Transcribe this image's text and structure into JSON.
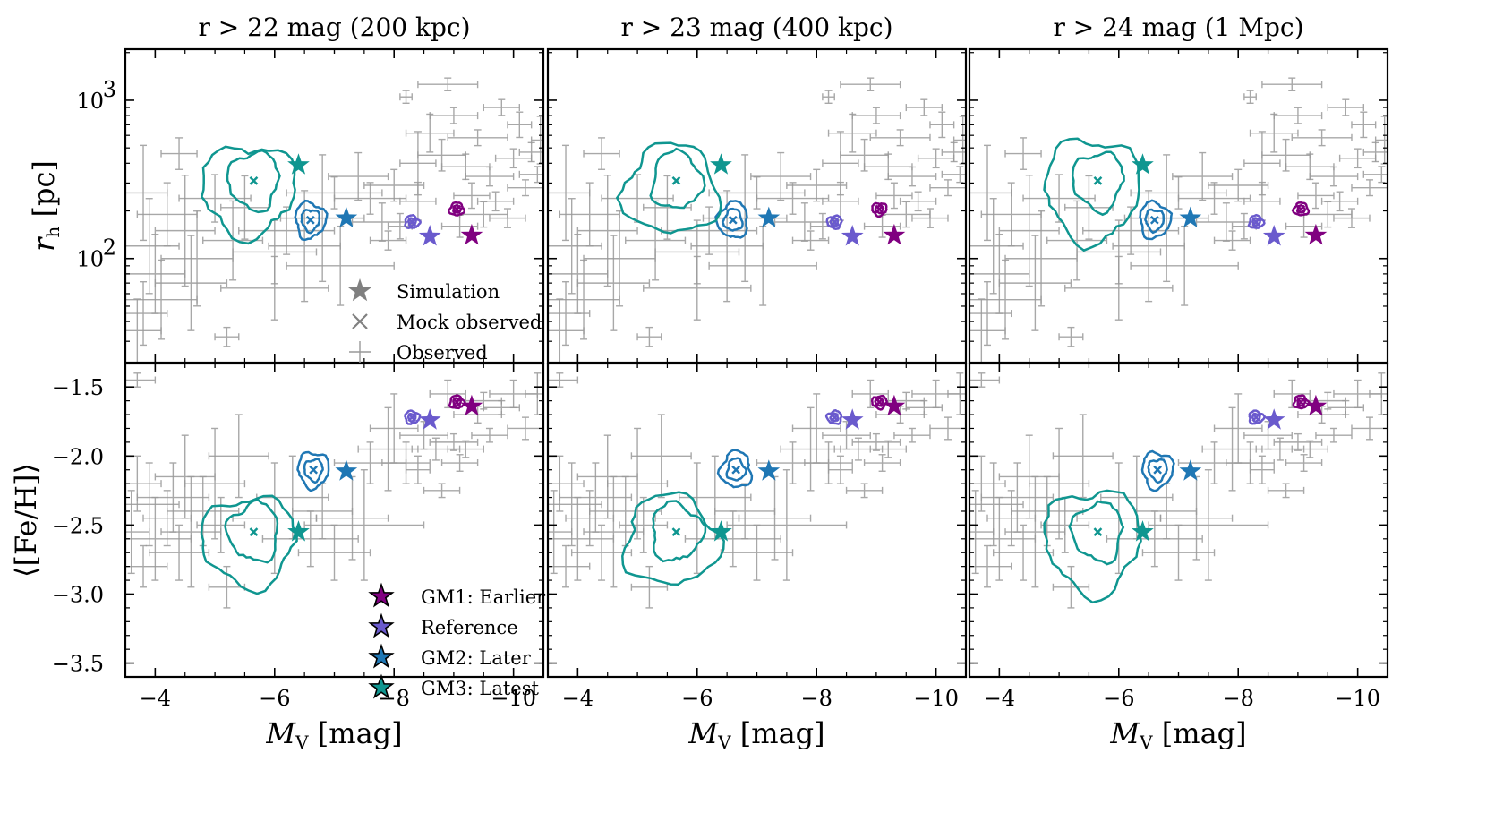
{
  "colors": {
    "GM1": "#800080",
    "Reference": "#6a5acd",
    "GM2": "#1f77b4",
    "GM3": "#0f9690",
    "observed": "#999999"
  },
  "chart_data": {
    "type": "scatter",
    "layout": "2 rows x 3 columns",
    "columns": [
      {
        "title": "r > 22 mag (200 kpc)"
      },
      {
        "title": "r > 23 mag (400 kpc)"
      },
      {
        "title": "r > 24 mag (1 Mpc)"
      }
    ],
    "x": {
      "label_main": "M",
      "label_sub": "V",
      "label_unit": " [mag]",
      "lim": [
        -3.5,
        -10.5
      ],
      "ticks": [
        -4,
        -6,
        -8,
        -10
      ],
      "tick_labels": [
        "−4",
        "−6",
        "−8",
        "−10"
      ]
    },
    "rows": [
      {
        "quantity": "r_h",
        "ylabel_main": "r",
        "ylabel_sub": "h",
        "ylabel_unit": " [pc]",
        "scale": "log",
        "ylim": [
          22,
          2100
        ],
        "ticks": [
          100,
          1000
        ],
        "tick_labels": [
          "10",
          "10"
        ],
        "tick_exponents": [
          "2",
          "3"
        ],
        "simulation": [
          {
            "model": "GM1",
            "MV": -9.3,
            "value": 140
          },
          {
            "model": "Reference",
            "MV": -8.6,
            "value": 138
          },
          {
            "model": "GM2",
            "MV": -7.2,
            "value": 180
          },
          {
            "model": "GM3",
            "MV": -6.4,
            "value": 390
          }
        ],
        "mock_observed": [
          {
            "model": "GM1",
            "MV": -9.05,
            "value": 205
          },
          {
            "model": "Reference",
            "MV": -8.3,
            "value": 170
          },
          {
            "model": "GM2",
            "MV": -6.6,
            "value": 175
          },
          {
            "model": "GM3",
            "MV": -5.65,
            "value": 310
          }
        ],
        "observed": [
          {
            "MV": -4.4,
            "value": 460,
            "xerr": 0.3,
            "yerr": 0.1
          },
          {
            "MV": -4.0,
            "value": 80,
            "xerr": 0.5,
            "yerr": 0.25
          },
          {
            "MV": -3.7,
            "value": 35,
            "xerr": 0.4,
            "yerr": 0.2
          },
          {
            "MV": -3.9,
            "value": 120,
            "xerr": 0.5,
            "yerr": 0.3
          },
          {
            "MV": -4.1,
            "value": 55,
            "xerr": 0.6,
            "yerr": 0.25
          },
          {
            "MV": -4.2,
            "value": 190,
            "xerr": 0.5,
            "yerr": 0.2
          },
          {
            "MV": -4.5,
            "value": 150,
            "xerr": 0.5,
            "yerr": 0.35
          },
          {
            "MV": -4.6,
            "value": 70,
            "xerr": 0.6,
            "yerr": 0.3
          },
          {
            "MV": -4.7,
            "value": 100,
            "xerr": 0.6,
            "yerr": 0.3
          },
          {
            "MV": -3.8,
            "value": 45,
            "xerr": 0.4,
            "yerr": 0.2
          },
          {
            "MV": -5.2,
            "value": 32,
            "xerr": 0.2,
            "yerr": 0.06
          },
          {
            "MV": -5.0,
            "value": 240,
            "xerr": 0.6,
            "yerr": 0.15
          },
          {
            "MV": -5.3,
            "value": 130,
            "xerr": 0.5,
            "yerr": 0.25
          },
          {
            "MV": -5.5,
            "value": 210,
            "xerr": 0.4,
            "yerr": 0.2
          },
          {
            "MV": -3.8,
            "value": 260,
            "xerr": 0.4,
            "yerr": 0.3
          },
          {
            "MV": -6.0,
            "value": 110,
            "xerr": 0.7,
            "yerr": 0.2
          },
          {
            "MV": -6.2,
            "value": 150,
            "xerr": 0.8,
            "yerr": 0.15
          },
          {
            "MV": -6.5,
            "value": 120,
            "xerr": 0.6,
            "yerr": 0.35
          },
          {
            "MV": -6.8,
            "value": 180,
            "xerr": 0.7,
            "yerr": 0.4
          },
          {
            "MV": -7.0,
            "value": 260,
            "xerr": 0.8,
            "yerr": 0.1
          },
          {
            "MV": -6.0,
            "value": 65,
            "xerr": 0.9,
            "yerr": 0.2
          },
          {
            "MV": -7.1,
            "value": 90,
            "xerr": 0.9,
            "yerr": 0.25
          },
          {
            "MV": -7.4,
            "value": 330,
            "xerr": 0.5,
            "yerr": 0.15
          },
          {
            "MV": -7.6,
            "value": 240,
            "xerr": 0.6,
            "yerr": 0.1
          },
          {
            "MV": -7.8,
            "value": 170,
            "xerr": 0.5,
            "yerr": 0.12
          },
          {
            "MV": -8.0,
            "value": 290,
            "xerr": 0.5,
            "yerr": 0.1
          },
          {
            "MV": -8.2,
            "value": 1050,
            "xerr": 0.1,
            "yerr": 0.04
          },
          {
            "MV": -8.4,
            "value": 400,
            "xerr": 0.3,
            "yerr": 0.2
          },
          {
            "MV": -8.4,
            "value": 230,
            "xerr": 0.3,
            "yerr": 0.12
          },
          {
            "MV": -8.6,
            "value": 620,
            "xerr": 0.4,
            "yerr": 0.12
          },
          {
            "MV": -8.8,
            "value": 450,
            "xerr": 0.4,
            "yerr": 0.1
          },
          {
            "MV": -8.9,
            "value": 1260,
            "xerr": 0.5,
            "yerr": 0.04
          },
          {
            "MV": -9.0,
            "value": 800,
            "xerr": 0.4,
            "yerr": 0.05
          },
          {
            "MV": -9.2,
            "value": 380,
            "xerr": 0.4,
            "yerr": 0.08
          },
          {
            "MV": -9.3,
            "value": 250,
            "xerr": 0.3,
            "yerr": 0.08
          },
          {
            "MV": -9.4,
            "value": 580,
            "xerr": 0.5,
            "yerr": 0.05
          },
          {
            "MV": -9.6,
            "value": 330,
            "xerr": 0.4,
            "yerr": 0.06
          },
          {
            "MV": -9.7,
            "value": 230,
            "xerr": 0.3,
            "yerr": 0.06
          },
          {
            "MV": -9.8,
            "value": 900,
            "xerr": 0.3,
            "yerr": 0.05
          },
          {
            "MV": -9.9,
            "value": 180,
            "xerr": 0.3,
            "yerr": 0.06
          },
          {
            "MV": -10.0,
            "value": 430,
            "xerr": 0.3,
            "yerr": 0.06
          },
          {
            "MV": -10.2,
            "value": 280,
            "xerr": 0.3,
            "yerr": 0.05
          },
          {
            "MV": -10.3,
            "value": 470,
            "xerr": 0.2,
            "yerr": 0.06
          },
          {
            "MV": -10.4,
            "value": 340,
            "xerr": 0.3,
            "yerr": 0.05
          },
          {
            "MV": -8.1,
            "value": 160,
            "xerr": 0.2,
            "yerr": 0.08
          },
          {
            "MV": -7.9,
            "value": 130,
            "xerr": 0.3,
            "yerr": 0.06
          },
          {
            "MV": -10.1,
            "value": 700,
            "xerr": 0.2,
            "yerr": 0.08
          },
          {
            "MV": -9.5,
            "value": 190,
            "xerr": 0.4,
            "yerr": 0.08
          },
          {
            "MV": -10.45,
            "value": 560,
            "xerr": 0.15,
            "yerr": 0.15
          },
          {
            "MV": -9.1,
            "value": 160,
            "xerr": 0.3,
            "yerr": 0.07
          }
        ]
      },
      {
        "quantity": "[Fe/H]",
        "ylabel_main": "⟨[Fe/H]⟩",
        "scale": "linear",
        "ylim": [
          -3.6,
          -1.33
        ],
        "ticks": [
          -1.5,
          -2.0,
          -2.5,
          -3.0,
          -3.5
        ],
        "tick_labels": [
          "−1.5",
          "−2.0",
          "−2.5",
          "−3.0",
          "−3.5"
        ],
        "simulation": [
          {
            "model": "GM1",
            "MV": -9.3,
            "value": -1.64
          },
          {
            "model": "Reference",
            "MV": -8.6,
            "value": -1.74
          },
          {
            "model": "GM2",
            "MV": -7.2,
            "value": -2.11
          },
          {
            "model": "GM3",
            "MV": -6.4,
            "value": -2.55
          }
        ],
        "mock_observed": [
          {
            "model": "GM1",
            "MV": -9.05,
            "value": -1.61
          },
          {
            "model": "Reference",
            "MV": -8.3,
            "value": -1.72
          },
          {
            "model": "GM2",
            "MV": -6.65,
            "value": -2.1
          },
          {
            "model": "GM3",
            "MV": -5.65,
            "value": -2.55
          }
        ],
        "observed": [
          {
            "MV": -3.7,
            "value": -2.2,
            "xerr": 0.4,
            "yerr": 0.2
          },
          {
            "MV": -3.9,
            "value": -2.35,
            "xerr": 0.5,
            "yerr": 0.3
          },
          {
            "MV": -4.0,
            "value": -2.6,
            "xerr": 0.6,
            "yerr": 0.3
          },
          {
            "MV": -4.2,
            "value": -2.45,
            "xerr": 0.4,
            "yerr": 0.2
          },
          {
            "MV": -4.3,
            "value": -2.3,
            "xerr": 0.6,
            "yerr": 0.25
          },
          {
            "MV": -4.4,
            "value": -2.7,
            "xerr": 0.5,
            "yerr": 0.2
          },
          {
            "MV": -4.5,
            "value": -2.15,
            "xerr": 0.5,
            "yerr": 0.3
          },
          {
            "MV": -4.6,
            "value": -2.55,
            "xerr": 0.5,
            "yerr": 0.4
          },
          {
            "MV": -3.8,
            "value": -2.8,
            "xerr": 0.4,
            "yerr": 0.15
          },
          {
            "MV": -4.8,
            "value": -2.4,
            "xerr": 0.6,
            "yerr": 0.25
          },
          {
            "MV": -5.0,
            "value": -2.2,
            "xerr": 0.5,
            "yerr": 0.4
          },
          {
            "MV": -5.1,
            "value": -2.5,
            "xerr": 0.4,
            "yerr": 0.2
          },
          {
            "MV": -5.2,
            "value": -2.95,
            "xerr": 0.3,
            "yerr": 0.15
          },
          {
            "MV": -5.4,
            "value": -2.0,
            "xerr": 0.5,
            "yerr": 0.3
          },
          {
            "MV": -3.6,
            "value": -2.55,
            "xerr": 0.3,
            "yerr": 0.3
          },
          {
            "MV": -6.0,
            "value": -2.45,
            "xerr": 0.7,
            "yerr": 0.4
          },
          {
            "MV": -6.3,
            "value": -2.3,
            "xerr": 0.6,
            "yerr": 0.3
          },
          {
            "MV": -6.6,
            "value": -2.6,
            "xerr": 0.8,
            "yerr": 0.2
          },
          {
            "MV": -6.8,
            "value": -2.4,
            "xerr": 0.5,
            "yerr": 0.2
          },
          {
            "MV": -7.0,
            "value": -2.7,
            "xerr": 0.6,
            "yerr": 0.2
          },
          {
            "MV": -7.3,
            "value": -2.45,
            "xerr": 0.6,
            "yerr": 0.3
          },
          {
            "MV": -7.5,
            "value": -2.5,
            "xerr": 1.0,
            "yerr": 0.4
          },
          {
            "MV": -3.7,
            "value": -1.45,
            "xerr": 0.3,
            "yerr": 0.05
          },
          {
            "MV": -7.9,
            "value": -1.95,
            "xerr": 0.5,
            "yerr": 0.3
          },
          {
            "MV": -8.0,
            "value": -1.8,
            "xerr": 0.4,
            "yerr": 0.25
          },
          {
            "MV": -8.2,
            "value": -2.05,
            "xerr": 0.4,
            "yerr": 0.15
          },
          {
            "MV": -8.4,
            "value": -2.1,
            "xerr": 0.2,
            "yerr": 0.1
          },
          {
            "MV": -8.5,
            "value": -1.85,
            "xerr": 0.4,
            "yerr": 0.1
          },
          {
            "MV": -8.7,
            "value": -1.95,
            "xerr": 0.4,
            "yerr": 0.08
          },
          {
            "MV": -8.8,
            "value": -2.25,
            "xerr": 0.3,
            "yerr": 0.05
          },
          {
            "MV": -9.0,
            "value": -1.9,
            "xerr": 0.4,
            "yerr": 0.06
          },
          {
            "MV": -9.2,
            "value": -1.95,
            "xerr": 0.3,
            "yerr": 0.06
          },
          {
            "MV": -9.4,
            "value": -1.7,
            "xerr": 0.4,
            "yerr": 0.06
          },
          {
            "MV": -9.6,
            "value": -1.85,
            "xerr": 0.3,
            "yerr": 0.05
          },
          {
            "MV": -9.8,
            "value": -1.65,
            "xerr": 0.3,
            "yerr": 0.05
          },
          {
            "MV": -10.0,
            "value": -1.55,
            "xerr": 0.4,
            "yerr": 0.1
          },
          {
            "MV": -10.2,
            "value": -1.8,
            "xerr": 0.3,
            "yerr": 0.08
          },
          {
            "MV": -10.4,
            "value": -1.55,
            "xerr": 0.2,
            "yerr": 0.15
          },
          {
            "MV": -9.5,
            "value": -1.6,
            "xerr": 0.3,
            "yerr": 0.06
          },
          {
            "MV": -8.9,
            "value": -1.55,
            "xerr": 0.3,
            "yerr": 0.1
          },
          {
            "MV": -9.1,
            "value": -2.05,
            "xerr": 0.3,
            "yerr": 0.06
          },
          {
            "MV": -7.6,
            "value": -2.05,
            "xerr": 0.6,
            "yerr": 0.15
          }
        ]
      }
    ],
    "legend_markers": {
      "location": "row 1, column 1, lower-middle",
      "entries": [
        {
          "marker": "star",
          "label": "Simulation"
        },
        {
          "marker": "x",
          "label": "Mock observed"
        },
        {
          "marker": "errorbar",
          "label": "Observed"
        }
      ]
    },
    "legend_models": {
      "location": "row 2, column 1, lower-right",
      "entries": [
        {
          "model": "GM1",
          "label": "GM1: Earlier"
        },
        {
          "model": "Reference",
          "label": "Reference"
        },
        {
          "model": "GM2",
          "label": "GM2: Later"
        },
        {
          "model": "GM3",
          "label": "GM3: Latest"
        }
      ]
    }
  }
}
